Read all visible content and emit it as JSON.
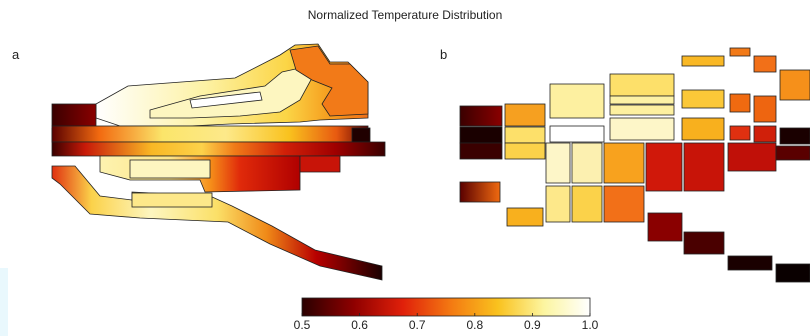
{
  "figure": {
    "title": "Normalized Temperature Distribution",
    "panels": [
      {
        "label": "a"
      },
      {
        "label": "b"
      }
    ]
  },
  "colorbar": {
    "colormap": "hot",
    "min": 0.5,
    "max": 1.0,
    "ticks": [
      "0.5",
      "0.6",
      "0.7",
      "0.8",
      "0.9",
      "1.0"
    ]
  },
  "colors": {
    "background": "#ffffff",
    "outline": "#222222",
    "colormap_stops": [
      "#2a0000",
      "#8f0000",
      "#e0200a",
      "#f47b12",
      "#f9c21e",
      "#fcf5a0",
      "#ffffff"
    ]
  }
}
